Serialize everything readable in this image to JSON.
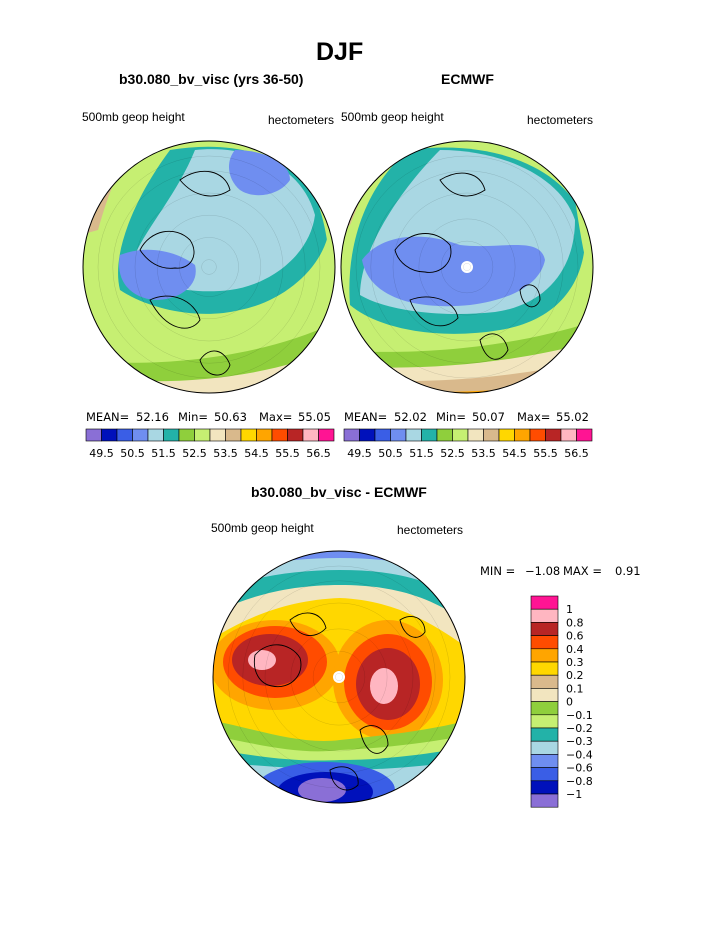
{
  "figure": {
    "title": "DJF"
  },
  "palette": [
    "#8a6fd6",
    "#0011bb",
    "#3a5ee6",
    "#6f8ef0",
    "#a9d7e3",
    "#23b2a8",
    "#8fcf3c",
    "#c6ef72",
    "#f2e5bf",
    "#d9b98c",
    "#ffd700",
    "#ffa500",
    "#ff4c00",
    "#b82525",
    "#ffb6c1",
    "#ff1493"
  ],
  "diff_palette": [
    "#8a6fd6",
    "#0011bb",
    "#3a5ee6",
    "#6f8ef0",
    "#a9d7e3",
    "#23b2a8",
    "#c6ef72",
    "#8fcf3c",
    "#f2e5bf",
    "#d9b98c",
    "#ffd700",
    "#ffa500",
    "#ff4c00",
    "#b82525",
    "#ffb6c1",
    "#ff1493"
  ],
  "chart_data": [
    {
      "type": "heatmap",
      "projection": "polar-stereographic",
      "title": "b30.080_bv_visc (yrs 36-50)",
      "variable": "500mb geop height",
      "units": "hectometers",
      "stats": {
        "mean_label": "MEAN=",
        "mean": "52.16",
        "min_label": "Min=",
        "min": "50.63",
        "max_label": "Max=",
        "max": "55.05"
      },
      "levels": [
        "49.5",
        "50.5",
        "51.5",
        "52.5",
        "53.5",
        "54.5",
        "55.5",
        "56.5"
      ],
      "rings": [
        [
          20,
          0
        ],
        [
          80,
          6
        ],
        [
          140,
          6
        ],
        [
          200,
          8
        ],
        [
          260,
          9
        ],
        [
          300,
          10
        ],
        [
          340,
          11
        ]
      ]
    },
    {
      "type": "heatmap",
      "projection": "polar-stereographic",
      "title": "ECMWF",
      "variable": "500mb geop height",
      "units": "hectometers",
      "stats": {
        "mean_label": "MEAN=",
        "mean": "52.02",
        "min_label": "Min=",
        "min": "50.07",
        "max_label": "Max=",
        "max": "55.02"
      },
      "levels": [
        "49.5",
        "50.5",
        "51.5",
        "52.5",
        "53.5",
        "54.5",
        "55.5",
        "56.5"
      ],
      "rings": [
        [
          10,
          0
        ],
        [
          70,
          6
        ],
        [
          130,
          5
        ],
        [
          200,
          7
        ],
        [
          260,
          8
        ],
        [
          300,
          9
        ],
        [
          340,
          10
        ]
      ]
    },
    {
      "type": "heatmap",
      "projection": "polar-stereographic",
      "title": "b30.080_bv_visc - ECMWF",
      "variable": "500mb geop height",
      "units": "hectometers",
      "stats": {
        "min_label": "MIN =",
        "min": "−1.08",
        "max_label": "MAX =",
        "max": "0.91"
      },
      "levels": [
        "1",
        "0.8",
        "0.6",
        "0.4",
        "0.3",
        "0.2",
        "0.1",
        "0",
        "−0.1",
        "−0.2",
        "−0.3",
        "−0.4",
        "−0.6",
        "−0.8",
        "−1"
      ],
      "rings": [
        [
          10,
          9
        ],
        [
          70,
          10
        ],
        [
          130,
          9
        ],
        [
          200,
          9
        ],
        [
          260,
          8
        ],
        [
          300,
          6
        ],
        [
          340,
          7
        ]
      ]
    }
  ]
}
